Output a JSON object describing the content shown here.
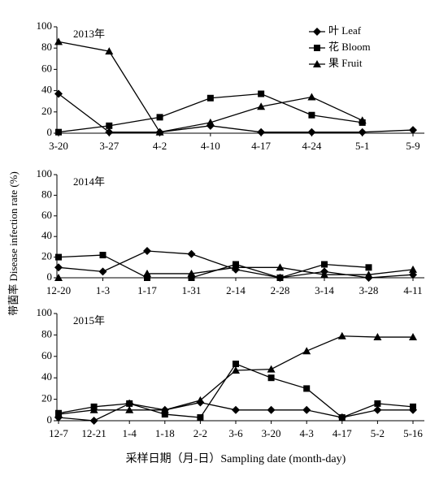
{
  "y_label": "带菌率 Disease infection rate (%)",
  "x_label": "采样日期（月-日）Sampling date (month-day)",
  "chart_data": [
    {
      "type": "line",
      "title": "2013年",
      "categories": [
        "3-20",
        "3-27",
        "4-2",
        "4-10",
        "4-17",
        "4-24",
        "5-1",
        "5-9"
      ],
      "ylim": [
        0,
        100
      ],
      "yticks": [
        0,
        20,
        40,
        60,
        80,
        100
      ],
      "legend": "upper right",
      "series": [
        {
          "name": "叶 Leaf",
          "marker": "diamond",
          "color": "#000000",
          "values": [
            37,
            1,
            1,
            7,
            1,
            1,
            1,
            3
          ]
        },
        {
          "name": "花 Bloom",
          "marker": "square",
          "color": "#000000",
          "values": [
            1,
            7,
            15,
            33,
            37,
            17,
            10,
            null
          ]
        },
        {
          "name": "果 Fruit",
          "marker": "triangle",
          "color": "#000000",
          "values": [
            86,
            77,
            1,
            10,
            25,
            34,
            12,
            null
          ]
        }
      ]
    },
    {
      "type": "line",
      "title": "2014年",
      "categories": [
        "12-20",
        "1-3",
        "1-17",
        "1-31",
        "2-14",
        "2-28",
        "3-14",
        "3-28",
        "4-11"
      ],
      "ylim": [
        0,
        100
      ],
      "yticks": [
        0,
        20,
        40,
        60,
        80,
        100
      ],
      "series": [
        {
          "marker": "diamond",
          "color": "#000000",
          "values": [
            10,
            6,
            26,
            23,
            8,
            0,
            6,
            0,
            3
          ]
        },
        {
          "marker": "square",
          "color": "#000000",
          "values": [
            20,
            22,
            0,
            0,
            13,
            0,
            13,
            10,
            null
          ]
        },
        {
          "marker": "triangle",
          "color": "#000000",
          "values": [
            0,
            null,
            4,
            4,
            10,
            10,
            3,
            3,
            8
          ]
        }
      ]
    },
    {
      "type": "line",
      "title": "2015年",
      "categories": [
        "12-7",
        "12-21",
        "1-4",
        "1-18",
        "2-2",
        "3-6",
        "3-20",
        "4-3",
        "4-17",
        "5-2",
        "5-16"
      ],
      "ylim": [
        0,
        100
      ],
      "yticks": [
        0,
        20,
        40,
        60,
        80,
        100
      ],
      "series": [
        {
          "marker": "diamond",
          "color": "#000000",
          "values": [
            3,
            0,
            16,
            10,
            17,
            10,
            10,
            10,
            3,
            10,
            10
          ]
        },
        {
          "marker": "square",
          "color": "#000000",
          "values": [
            7,
            13,
            16,
            6,
            3,
            53,
            40,
            30,
            3,
            16,
            13
          ]
        },
        {
          "marker": "triangle",
          "color": "#000000",
          "values": [
            6,
            10,
            10,
            10,
            19,
            47,
            48,
            65,
            79,
            78,
            78
          ]
        }
      ]
    }
  ]
}
